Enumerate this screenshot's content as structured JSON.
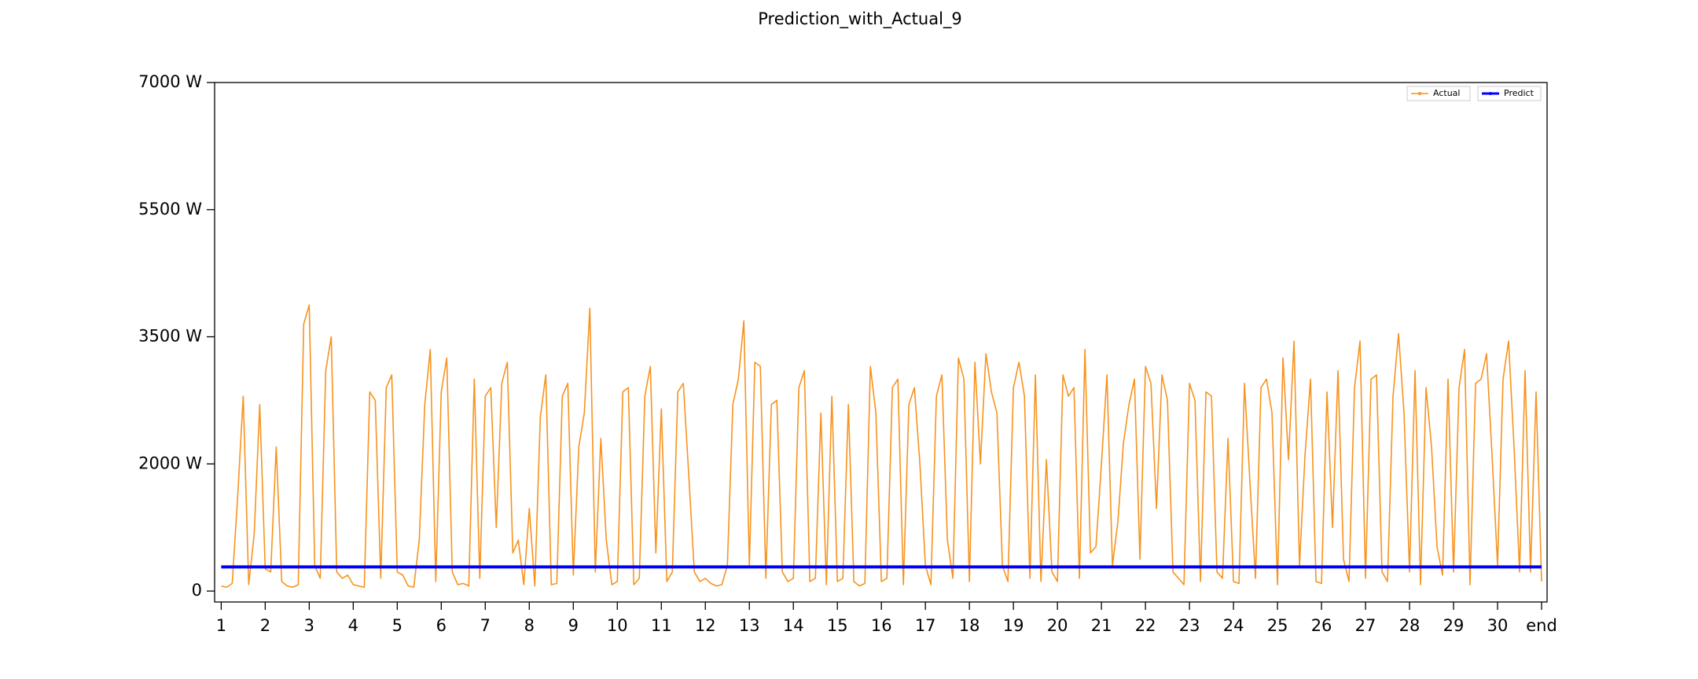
{
  "chart_data": {
    "type": "line",
    "title": "Prediction_with_Actual_9",
    "xlim": [
      -1.2,
      241
    ],
    "xticks": [
      {
        "value": 0,
        "label": "1"
      },
      {
        "value": 8,
        "label": "2"
      },
      {
        "value": 16,
        "label": "3"
      },
      {
        "value": 24,
        "label": "4"
      },
      {
        "value": 32,
        "label": "5"
      },
      {
        "value": 40,
        "label": "6"
      },
      {
        "value": 48,
        "label": "7"
      },
      {
        "value": 56,
        "label": "8"
      },
      {
        "value": 64,
        "label": "9"
      },
      {
        "value": 72,
        "label": "10"
      },
      {
        "value": 80,
        "label": "11"
      },
      {
        "value": 88,
        "label": "12"
      },
      {
        "value": 96,
        "label": "13"
      },
      {
        "value": 104,
        "label": "14"
      },
      {
        "value": 112,
        "label": "15"
      },
      {
        "value": 120,
        "label": "16"
      },
      {
        "value": 128,
        "label": "17"
      },
      {
        "value": 136,
        "label": "18"
      },
      {
        "value": 144,
        "label": "19"
      },
      {
        "value": 152,
        "label": "20"
      },
      {
        "value": 160,
        "label": "21"
      },
      {
        "value": 168,
        "label": "22"
      },
      {
        "value": 176,
        "label": "23"
      },
      {
        "value": 184,
        "label": "24"
      },
      {
        "value": 192,
        "label": "25"
      },
      {
        "value": 200,
        "label": "26"
      },
      {
        "value": 208,
        "label": "27"
      },
      {
        "value": 216,
        "label": "28"
      },
      {
        "value": 224,
        "label": "29"
      },
      {
        "value": 232,
        "label": "30"
      },
      {
        "value": 240,
        "label": "end"
      }
    ],
    "ylim": [
      -172,
      7000
    ],
    "yticks": [
      0,
      {
        "value": 2000,
        "label": "2000 W"
      },
      {
        "value": 3500,
        "label": "3500 W"
      },
      {
        "value": 5500,
        "label": "5500 W"
      },
      {
        "value": 7000,
        "label": "7000 W"
      }
    ],
    "legend": "upper right",
    "series": [
      {
        "name": "Actual",
        "color": "#f7931e",
        "values": [
          80,
          60,
          120,
          1500,
          2800,
          100,
          900,
          2700,
          350,
          300,
          2200,
          150,
          80,
          60,
          100,
          3700,
          4000,
          400,
          200,
          3100,
          3500,
          300,
          200,
          250,
          100,
          80,
          60,
          2850,
          2750,
          200,
          2900,
          3050,
          300,
          250,
          80,
          60,
          800,
          2700,
          3350,
          150,
          2850,
          3250,
          300,
          100,
          120,
          80,
          3000,
          200,
          2800,
          2900,
          1000,
          2950,
          3200,
          600,
          800,
          100,
          1300,
          80,
          2550,
          3050,
          100,
          120,
          2800,
          2950,
          250,
          2200,
          2600,
          3950,
          300,
          2300,
          800,
          100,
          150,
          2850,
          2900,
          100,
          200,
          2800,
          3150,
          600,
          2650,
          150,
          300,
          2850,
          2950,
          1800,
          300,
          150,
          200,
          120,
          80,
          100,
          400,
          2700,
          3000,
          3750,
          400,
          3200,
          3150,
          200,
          2700,
          2750,
          300,
          150,
          200,
          2900,
          3100,
          150,
          200,
          2600,
          100,
          2800,
          150,
          200,
          2700,
          150,
          80,
          120,
          3150,
          2600,
          150,
          200,
          2900,
          3000,
          100,
          2700,
          2900,
          2000,
          400,
          100,
          2800,
          3050,
          800,
          200,
          3250,
          3000,
          150,
          3200,
          2000,
          3300,
          2850,
          2600,
          400,
          150,
          2900,
          3200,
          2800,
          200,
          3050,
          150,
          2050,
          300,
          150,
          3050,
          2800,
          2900,
          200,
          3350,
          600,
          700,
          2000,
          3050,
          400,
          1100,
          2250,
          2700,
          3000,
          500,
          3150,
          2950,
          1300,
          3050,
          2750,
          300,
          200,
          100,
          2950,
          2750,
          150,
          2850,
          2800,
          300,
          200,
          2300,
          150,
          120,
          2950,
          1700,
          200,
          2900,
          3000,
          2600,
          100,
          3250,
          2050,
          3450,
          400,
          2100,
          3000,
          150,
          120,
          2850,
          1000,
          3100,
          500,
          150,
          2900,
          3450,
          200,
          3000,
          3050,
          300,
          150,
          2800,
          3550,
          2600,
          300,
          3100,
          100,
          2900,
          2200,
          700,
          250,
          3000,
          300,
          2900,
          3350,
          100,
          2950,
          3000,
          3300,
          2100,
          400,
          3000,
          3450,
          2200,
          300,
          3100,
          300,
          2850,
          150
        ]
      },
      {
        "name": "Predict",
        "color": "#0000ff",
        "values": [
          380,
          380,
          380,
          380,
          380,
          380,
          380,
          380,
          380,
          380,
          380,
          380,
          380,
          380,
          380,
          380,
          380,
          380,
          380,
          380,
          380,
          380,
          380,
          380,
          380,
          380,
          380,
          380,
          380,
          380,
          380,
          380,
          380,
          380,
          380,
          380,
          380,
          380,
          380,
          380,
          380,
          380,
          380,
          380,
          380,
          380,
          380,
          380,
          380,
          380,
          380,
          380,
          380,
          380,
          380,
          380,
          380,
          380,
          380,
          380,
          380,
          380,
          380,
          380,
          380,
          380,
          380,
          380,
          380,
          380,
          380,
          380,
          380,
          380,
          380,
          380,
          380,
          380,
          380,
          380,
          380,
          380,
          380,
          380,
          380,
          380,
          380,
          380,
          380,
          380,
          380,
          380,
          380,
          380,
          380,
          380,
          380,
          380,
          380,
          380,
          380,
          380,
          380,
          380,
          380,
          380,
          380,
          380,
          380,
          380,
          380,
          380,
          380,
          380,
          380,
          380,
          380,
          380,
          380,
          380,
          380,
          380,
          380,
          380,
          380,
          380,
          380,
          380,
          380,
          380,
          380,
          380,
          380,
          380,
          380,
          380,
          380,
          380,
          380,
          380,
          380,
          380,
          380,
          380,
          380,
          380,
          380,
          380,
          380,
          380,
          380,
          380,
          380,
          380,
          380,
          380,
          380,
          380,
          380,
          380,
          380,
          380,
          380,
          380,
          380,
          380,
          380,
          380,
          380,
          380,
          380,
          380,
          380,
          380,
          380,
          380,
          380,
          380,
          380,
          380,
          380,
          380,
          380,
          380,
          380,
          380,
          380,
          380,
          380,
          380,
          380,
          380,
          380,
          380,
          380,
          380,
          380,
          380,
          380,
          380,
          380,
          380,
          380,
          380,
          380,
          380,
          380,
          380,
          380,
          380,
          380,
          380,
          380,
          380,
          380,
          380,
          380,
          380,
          380,
          380,
          380,
          380,
          380,
          380,
          380,
          380,
          380,
          380,
          380,
          380,
          380,
          380,
          380,
          380,
          380,
          380,
          380,
          380,
          380,
          380,
          380
        ]
      }
    ]
  }
}
